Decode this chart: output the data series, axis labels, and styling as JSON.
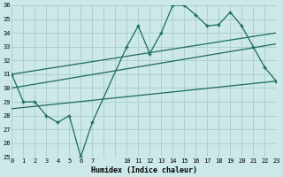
{
  "xlabel": "Humidex (Indice chaleur)",
  "bg_color": "#cce8e8",
  "grid_color": "#aacccc",
  "line_color": "#1a6b5a",
  "xlim": [
    0,
    23
  ],
  "ylim": [
    25,
    36
  ],
  "yticks": [
    25,
    26,
    27,
    28,
    29,
    30,
    31,
    32,
    33,
    34,
    35,
    36
  ],
  "main_x": [
    0,
    1,
    2,
    3,
    4,
    5,
    6,
    7,
    10,
    11,
    12,
    13,
    14,
    15,
    16,
    17,
    18,
    19,
    20,
    21,
    22,
    23
  ],
  "main_y": [
    31,
    29,
    29,
    28,
    27.5,
    28,
    25,
    27.5,
    33,
    34.5,
    32.5,
    34,
    36,
    36,
    35.3,
    34.5,
    34.6,
    35.5,
    34.5,
    33,
    31.5,
    30.5
  ],
  "trend1_x": [
    0,
    23
  ],
  "trend1_y": [
    31.0,
    34.0
  ],
  "trend2_x": [
    0,
    23
  ],
  "trend2_y": [
    30.0,
    33.2
  ],
  "trend3_x": [
    0,
    23
  ],
  "trend3_y": [
    28.5,
    30.5
  ],
  "xtick_vals": [
    0,
    1,
    2,
    3,
    4,
    5,
    6,
    7,
    10,
    11,
    12,
    13,
    14,
    15,
    16,
    17,
    18,
    19,
    20,
    21,
    22,
    23
  ],
  "fontsize_ticks": 5,
  "fontsize_xlabel": 6,
  "font_family": "monospace"
}
